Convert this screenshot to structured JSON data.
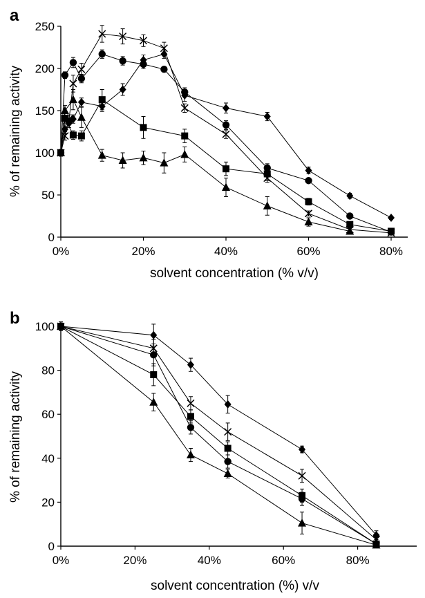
{
  "chart_data": [
    {
      "panel_label": "a",
      "type": "line",
      "xlabel": "solvent concentration (% v/v)",
      "ylabel": "% of remaining  activity",
      "xlim": [
        0,
        80
      ],
      "ylim": [
        0,
        250
      ],
      "x_ticks": [
        "0%",
        "20%",
        "40%",
        "60%",
        "80%"
      ],
      "x_tick_values": [
        0,
        20,
        40,
        60,
        80
      ],
      "y_ticks": [
        "0",
        "50",
        "100",
        "150",
        "200",
        "250"
      ],
      "y_tick_values": [
        0,
        50,
        100,
        150,
        200,
        250
      ],
      "grid": false,
      "legend": "none",
      "series": [
        {
          "marker": "diamond",
          "x": [
            0,
            1,
            2,
            3,
            5,
            10,
            15,
            20,
            25,
            30,
            40,
            50,
            60,
            70,
            80
          ],
          "y": [
            100,
            128,
            135,
            140,
            160,
            155,
            175,
            210,
            217,
            168,
            153,
            143,
            79,
            49,
            23
          ],
          "err": [
            4,
            5,
            5,
            5,
            5,
            6,
            7,
            6,
            5,
            7,
            6,
            5,
            4,
            3,
            2
          ]
        },
        {
          "marker": "circle",
          "x": [
            0,
            1,
            3,
            5,
            10,
            15,
            20,
            25,
            30,
            40,
            50,
            60,
            70,
            80
          ],
          "y": [
            100,
            192,
            207,
            188,
            217,
            209,
            205,
            199,
            172,
            133,
            82,
            67,
            25,
            6
          ],
          "err": [
            4,
            4,
            6,
            5,
            5,
            5,
            5,
            3,
            5,
            5,
            5,
            3,
            3,
            2
          ]
        },
        {
          "marker": "cross",
          "x": [
            0,
            1,
            2,
            3,
            5,
            10,
            15,
            20,
            25,
            30,
            40,
            50,
            60,
            70,
            80
          ],
          "y": [
            100,
            120,
            140,
            182,
            199,
            241,
            238,
            233,
            224,
            153,
            122,
            70,
            28,
            9,
            5
          ],
          "err": [
            4,
            5,
            5,
            10,
            7,
            10,
            9,
            7,
            7,
            5,
            5,
            5,
            3,
            2,
            2
          ]
        },
        {
          "marker": "square",
          "x": [
            0,
            1,
            3,
            5,
            10,
            20,
            30,
            40,
            50,
            60,
            70,
            80
          ],
          "y": [
            100,
            141,
            121,
            120,
            163,
            130,
            120,
            81,
            75,
            42,
            15,
            7
          ],
          "err": [
            4,
            6,
            5,
            6,
            12,
            13,
            8,
            8,
            8,
            4,
            3,
            2
          ]
        },
        {
          "marker": "triangle",
          "x": [
            0,
            1,
            3,
            5,
            10,
            15,
            20,
            25,
            30,
            40,
            50,
            60,
            70
          ],
          "y": [
            100,
            150,
            163,
            142,
            97,
            91,
            94,
            88,
            98,
            59,
            37,
            18,
            7
          ],
          "err": [
            4,
            6,
            12,
            12,
            7,
            9,
            8,
            12,
            9,
            11,
            11,
            5,
            3
          ]
        }
      ]
    },
    {
      "panel_label": "b",
      "type": "line",
      "xlabel": "solvent concentration (%) v/v",
      "ylabel": "% of remaining activity",
      "xlim": [
        0,
        100
      ],
      "ylim": [
        0,
        100
      ],
      "x_ticks": [
        "0%",
        "20%",
        "40%",
        "60%",
        "80%"
      ],
      "x_tick_values": [
        0,
        20,
        40,
        60,
        80
      ],
      "y_ticks": [
        "0",
        "20",
        "40",
        "60",
        "80",
        "100"
      ],
      "y_tick_values": [
        0,
        20,
        40,
        60,
        80,
        100
      ],
      "grid": false,
      "legend": "none",
      "series": [
        {
          "marker": "diamond",
          "x": [
            0,
            25,
            35,
            45,
            65,
            85
          ],
          "y": [
            100,
            96,
            82.5,
            64.5,
            44,
            5
          ],
          "err": [
            2,
            5,
            3,
            4,
            1.5,
            2
          ]
        },
        {
          "marker": "cross",
          "x": [
            0,
            25,
            35,
            45,
            65,
            85
          ],
          "y": [
            100,
            90,
            65,
            52,
            32,
            3
          ],
          "err": [
            2,
            4,
            3,
            4,
            3,
            1
          ]
        },
        {
          "marker": "square",
          "x": [
            0,
            25,
            35,
            45,
            65,
            85
          ],
          "y": [
            100,
            78,
            59,
            44.5,
            23,
            1
          ],
          "err": [
            2,
            5,
            3,
            3,
            3,
            1
          ]
        },
        {
          "marker": "circle",
          "x": [
            0,
            25,
            35,
            45,
            65,
            85
          ],
          "y": [
            100,
            87,
            54,
            38.5,
            21.5,
            1
          ],
          "err": [
            2,
            5,
            3,
            3,
            3,
            1
          ]
        },
        {
          "marker": "triangle",
          "x": [
            0,
            25,
            35,
            45,
            65,
            85
          ],
          "y": [
            100,
            65.5,
            41.5,
            33,
            10.5,
            0.5
          ],
          "err": [
            2,
            4,
            3,
            2,
            5,
            1
          ]
        }
      ]
    }
  ]
}
